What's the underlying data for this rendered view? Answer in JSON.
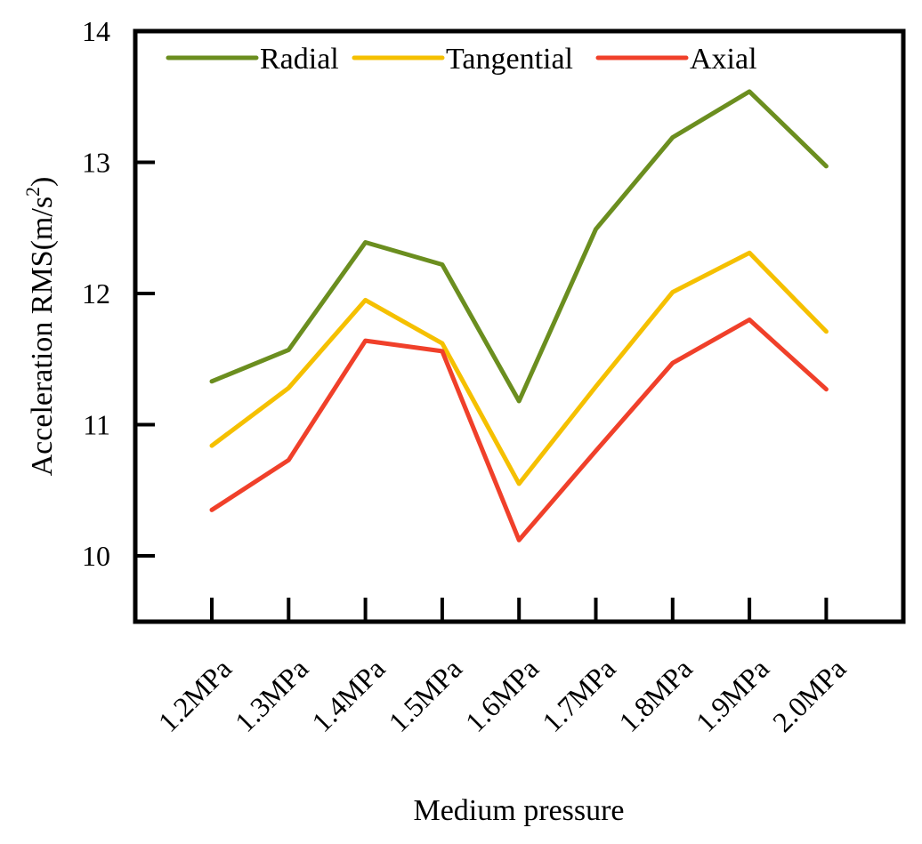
{
  "chart_data": {
    "type": "line",
    "title": "",
    "xlabel": "Medium pressure",
    "ylabel_main": "Acceleration RMS(m/s",
    "ylabel_sup": "2",
    "ylabel_close": ")",
    "categories": [
      "1.2MPa",
      "1.3MPa",
      "1.4MPa",
      "1.5MPa",
      "1.6MPa",
      "1.7MPa",
      "1.8MPa",
      "1.9MPa",
      "2.0MPa"
    ],
    "ylim": [
      9.5,
      14
    ],
    "yticks": [
      10,
      11,
      12,
      13,
      14
    ],
    "grid": false,
    "legend_position": "top",
    "series": [
      {
        "name": "Radial",
        "color": "#6b8e1f",
        "values": [
          11.33,
          11.57,
          12.39,
          12.22,
          11.18,
          12.49,
          13.19,
          13.54,
          12.97
        ]
      },
      {
        "name": "Tangential",
        "color": "#f5c000",
        "values": [
          10.84,
          11.28,
          11.95,
          11.62,
          10.55,
          11.29,
          12.01,
          12.31,
          11.71
        ]
      },
      {
        "name": "Axial",
        "color": "#f0402a",
        "values": [
          10.35,
          10.73,
          11.64,
          11.56,
          10.12,
          10.8,
          11.47,
          11.8,
          11.27
        ]
      }
    ]
  }
}
